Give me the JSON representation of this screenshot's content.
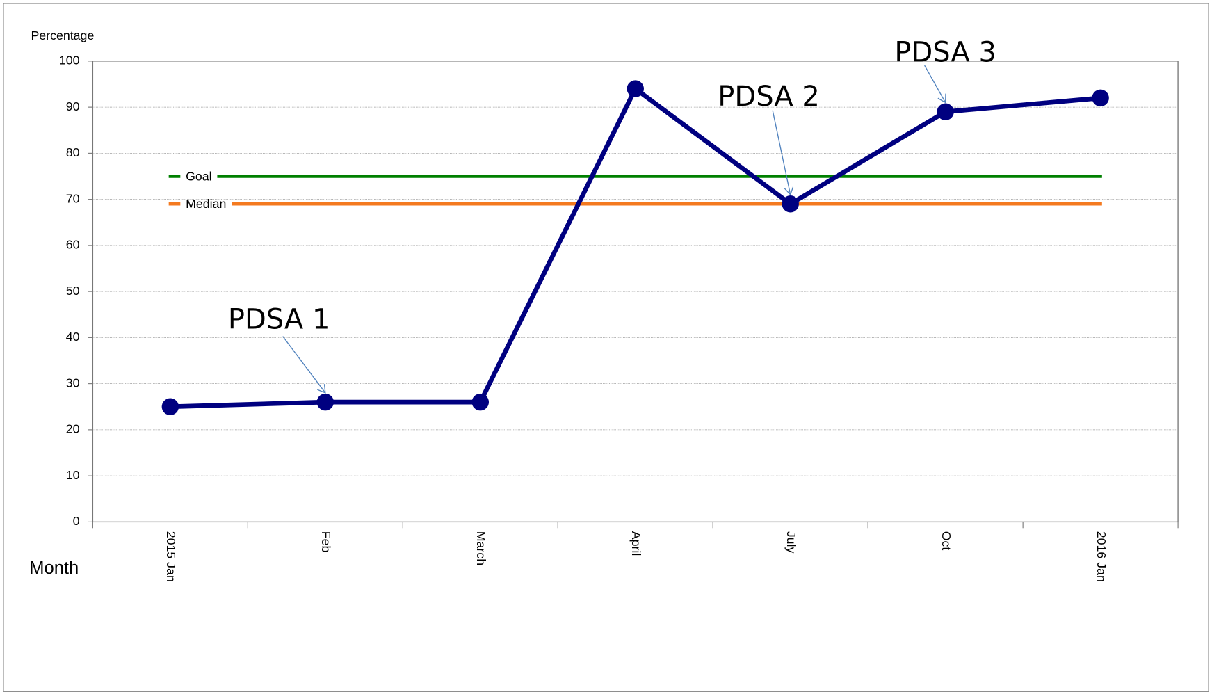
{
  "chart_data": {
    "type": "line",
    "y_label": "Percentage",
    "x_label": "Month",
    "categories": [
      "2015 Jan",
      "Feb",
      "March",
      "April",
      "July",
      "Oct",
      "2016 Jan"
    ],
    "series": [
      {
        "color": "#000080",
        "values": [
          25,
          26,
          26,
          94,
          69,
          89,
          92
        ]
      }
    ],
    "reference_lines": [
      {
        "name": "Goal",
        "value": 75,
        "color": "#008000"
      },
      {
        "name": "Median",
        "value": 69,
        "color": "#f47a20",
        "label_color": "#ff0000"
      }
    ],
    "annotations": [
      {
        "text": "PDSA 1",
        "target": "Feb"
      },
      {
        "text": "PDSA 2",
        "target": "July"
      },
      {
        "text": "PDSA 3",
        "target": "Oct"
      }
    ],
    "ylim": [
      0,
      100
    ],
    "yticks": [
      0,
      10,
      20,
      30,
      40,
      50,
      60,
      70,
      80,
      90,
      100
    ],
    "grid": true
  }
}
